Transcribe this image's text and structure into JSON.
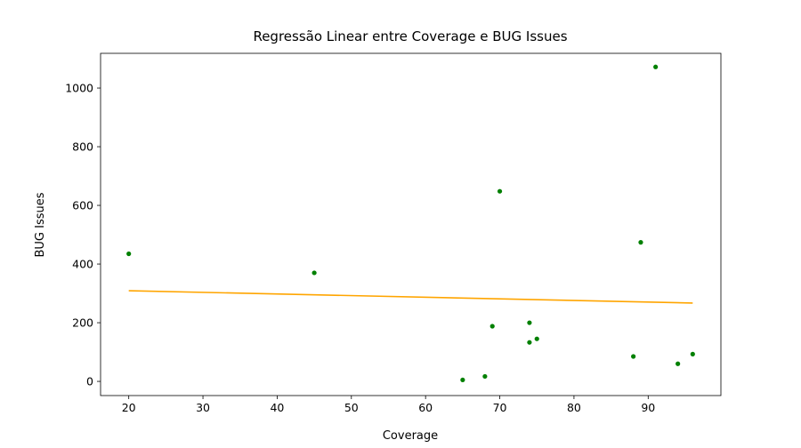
{
  "chart_data": {
    "type": "scatter",
    "title": "Regressão Linear entre Coverage e BUG Issues",
    "xlabel": "Coverage",
    "ylabel": "BUG Issues",
    "xlim": [
      16.2,
      99.8
    ],
    "ylim": [
      -48.3,
      1118.3
    ],
    "xticks": [
      20,
      30,
      40,
      50,
      60,
      70,
      80,
      90
    ],
    "yticks": [
      0,
      200,
      400,
      600,
      800,
      1000
    ],
    "grid": false,
    "point_color": "#008000",
    "line_color": "#ffa500",
    "points": [
      {
        "x": 20,
        "y": 435
      },
      {
        "x": 45,
        "y": 370
      },
      {
        "x": 65,
        "y": 5
      },
      {
        "x": 68,
        "y": 17
      },
      {
        "x": 69,
        "y": 188
      },
      {
        "x": 70,
        "y": 648
      },
      {
        "x": 74,
        "y": 200
      },
      {
        "x": 74,
        "y": 133
      },
      {
        "x": 75,
        "y": 145
      },
      {
        "x": 88,
        "y": 85
      },
      {
        "x": 89,
        "y": 474
      },
      {
        "x": 91,
        "y": 1072
      },
      {
        "x": 94,
        "y": 60
      },
      {
        "x": 96,
        "y": 93
      }
    ],
    "regression_line": {
      "x": [
        20,
        96
      ],
      "y": [
        309,
        267
      ]
    }
  }
}
